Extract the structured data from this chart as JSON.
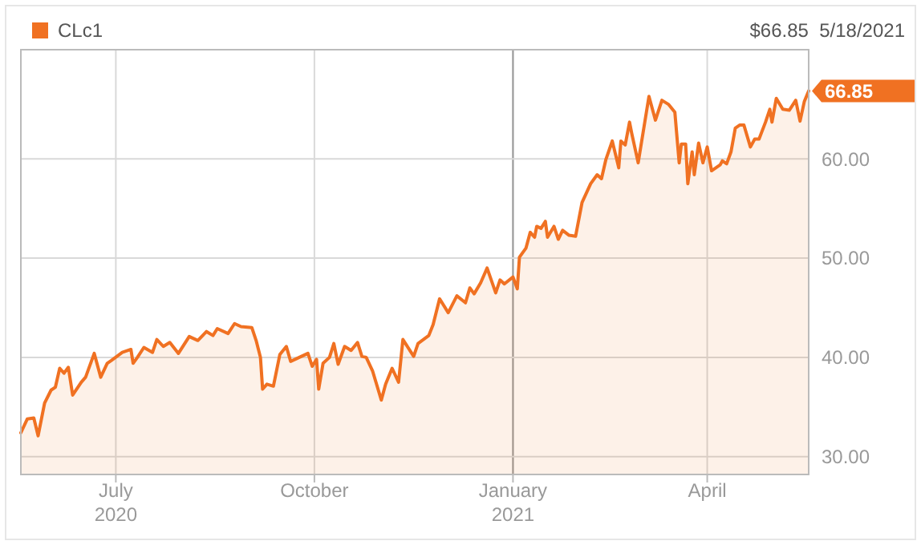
{
  "chart_data": {
    "type": "area",
    "legend": "top left",
    "grid": true,
    "xlim": [
      "2020-05-18",
      "2021-05-18"
    ],
    "ylim": [
      28.2,
      71
    ],
    "xticks": [
      {
        "value": "2020-07-01",
        "label": "July\n2020"
      },
      {
        "value": "2020-10-01",
        "label": "October"
      },
      {
        "value": "2021-01-01",
        "label": "January\n2021"
      },
      {
        "value": "2021-04-01",
        "label": "April"
      }
    ],
    "yticks": [
      {
        "value": 30,
        "label": "30.00"
      },
      {
        "value": 40,
        "label": "40.00"
      },
      {
        "value": 50,
        "label": "50.00"
      },
      {
        "value": 60,
        "label": "60.00"
      }
    ],
    "annotations": [
      "$66.85  5/18/2021",
      "66.85"
    ],
    "ref_lines": [
      {
        "axis": "x",
        "value": "2021-01-01",
        "color": "#999999"
      }
    ],
    "x": [
      "2020-05-18",
      "2020-05-21",
      "2020-05-24",
      "2020-05-26",
      "2020-05-29",
      "2020-06-01",
      "2020-06-03",
      "2020-06-05",
      "2020-06-07",
      "2020-06-09",
      "2020-06-11",
      "2020-06-15",
      "2020-06-17",
      "2020-06-21",
      "2020-06-24",
      "2020-06-27",
      "2020-06-29",
      "2020-07-04",
      "2020-07-08",
      "2020-07-09",
      "2020-07-11",
      "2020-07-14",
      "2020-07-18",
      "2020-07-20",
      "2020-07-23",
      "2020-07-26",
      "2020-07-30",
      "2020-08-04",
      "2020-08-08",
      "2020-08-12",
      "2020-08-15",
      "2020-08-17",
      "2020-08-22",
      "2020-08-25",
      "2020-08-28",
      "2020-09-02",
      "2020-09-04",
      "2020-09-06",
      "2020-09-07",
      "2020-09-09",
      "2020-09-12",
      "2020-09-15",
      "2020-09-18",
      "2020-09-20",
      "2020-09-24",
      "2020-09-28",
      "2020-09-30",
      "2020-10-02",
      "2020-10-03",
      "2020-10-05",
      "2020-10-08",
      "2020-10-10",
      "2020-10-12",
      "2020-10-15",
      "2020-10-18",
      "2020-10-21",
      "2020-10-23",
      "2020-10-25",
      "2020-10-28",
      "2020-11-01",
      "2020-11-03",
      "2020-11-06",
      "2020-11-09",
      "2020-11-11",
      "2020-11-16",
      "2020-11-18",
      "2020-11-23",
      "2020-11-25",
      "2020-11-28",
      "2020-12-02",
      "2020-12-06",
      "2020-12-10",
      "2020-12-12",
      "2020-12-14",
      "2020-12-17",
      "2020-12-20",
      "2020-12-24",
      "2020-12-26",
      "2020-12-28",
      "2021-01-01",
      "2021-01-03",
      "2021-01-04",
      "2021-01-07",
      "2021-01-09",
      "2021-01-11",
      "2021-01-12",
      "2021-01-14",
      "2021-01-16",
      "2021-01-17",
      "2021-01-20",
      "2021-01-22",
      "2021-01-24",
      "2021-01-27",
      "2021-01-30",
      "2021-02-02",
      "2021-02-06",
      "2021-02-09",
      "2021-02-11",
      "2021-02-13",
      "2021-02-16",
      "2021-02-19",
      "2021-02-20",
      "2021-02-22",
      "2021-02-24",
      "2021-02-25",
      "2021-02-28",
      "2021-03-05",
      "2021-03-08",
      "2021-03-11",
      "2021-03-14",
      "2021-03-17",
      "2021-03-19",
      "2021-03-20",
      "2021-03-22",
      "2021-03-23",
      "2021-03-25",
      "2021-03-26",
      "2021-03-28",
      "2021-03-30",
      "2021-04-01",
      "2021-04-03",
      "2021-04-07",
      "2021-04-08",
      "2021-04-10",
      "2021-04-12",
      "2021-04-14",
      "2021-04-16",
      "2021-04-18",
      "2021-04-21",
      "2021-04-23",
      "2021-04-25",
      "2021-04-28",
      "2021-04-30",
      "2021-05-01",
      "2021-05-03",
      "2021-05-06",
      "2021-05-09",
      "2021-05-12",
      "2021-05-14",
      "2021-05-16",
      "2021-05-18"
    ],
    "series": [
      {
        "name": "CLc1",
        "color": "#f07122",
        "values": [
          32.4,
          33.8,
          33.9,
          32.1,
          35.4,
          36.7,
          37.0,
          38.9,
          38.4,
          39.0,
          36.2,
          37.5,
          38.0,
          40.4,
          38.0,
          39.4,
          39.7,
          40.5,
          40.8,
          39.4,
          40.0,
          41.0,
          40.5,
          41.8,
          41.1,
          41.5,
          40.4,
          42.1,
          41.7,
          42.6,
          42.2,
          42.9,
          42.4,
          43.4,
          43.1,
          43.0,
          41.7,
          40.0,
          36.8,
          37.3,
          37.1,
          40.3,
          41.1,
          39.6,
          40.0,
          40.4,
          39.1,
          39.8,
          36.8,
          39.4,
          40.0,
          41.4,
          39.3,
          41.1,
          40.7,
          41.5,
          40.1,
          40.0,
          38.6,
          35.7,
          37.3,
          38.9,
          37.5,
          41.8,
          40.1,
          41.4,
          42.2,
          43.3,
          45.9,
          44.5,
          46.2,
          45.5,
          47.0,
          46.4,
          47.5,
          49.0,
          46.5,
          47.8,
          47.4,
          48.1,
          46.9,
          50.1,
          51.0,
          52.6,
          52.1,
          53.2,
          53.0,
          53.7,
          52.1,
          53.2,
          51.9,
          52.8,
          52.3,
          52.2,
          55.6,
          57.5,
          58.4,
          58.0,
          59.9,
          61.8,
          59.1,
          61.8,
          61.4,
          63.7,
          62.6,
          59.6,
          66.3,
          63.9,
          65.9,
          65.5,
          64.7,
          59.6,
          61.5,
          61.5,
          57.5,
          60.7,
          58.4,
          61.6,
          59.6,
          61.2,
          58.8,
          59.4,
          59.8,
          59.5,
          60.7,
          63.1,
          63.4,
          63.4,
          61.2,
          62.0,
          62.0,
          63.7,
          65.0,
          63.7,
          66.1,
          65.0,
          64.9,
          65.9,
          63.8,
          65.8,
          66.85
        ]
      }
    ]
  }
}
